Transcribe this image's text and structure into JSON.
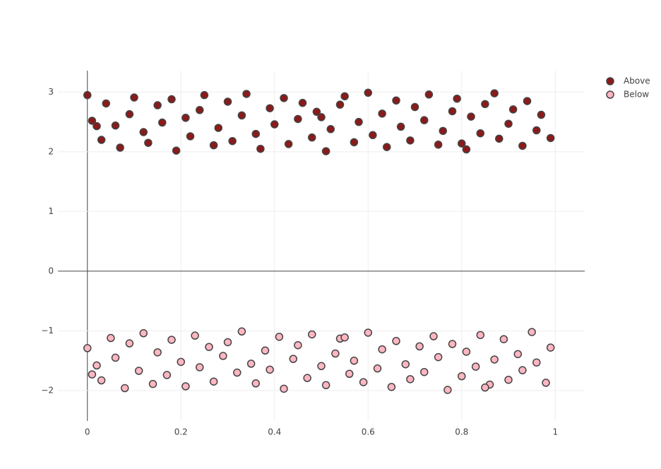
{
  "chart_data": {
    "type": "scatter",
    "xlim": [
      -0.063,
      1.063
    ],
    "ylim": [
      -2.51,
      3.36
    ],
    "xticks": [
      0,
      0.2,
      0.4,
      0.6,
      0.8,
      1
    ],
    "yticks": [
      {
        "value": -2,
        "label": "−2"
      },
      {
        "value": -1,
        "label": "−1"
      },
      0,
      1,
      2,
      3
    ],
    "grid": true,
    "legend": "top-right",
    "series": [
      {
        "name": "Above",
        "color": "#8b1a1a",
        "x": [
          0.0,
          0.01,
          0.03,
          0.04,
          0.06,
          0.07,
          0.09,
          0.1,
          0.12,
          0.13,
          0.15,
          0.16,
          0.18,
          0.19,
          0.21,
          0.22,
          0.24,
          0.25,
          0.27,
          0.28,
          0.3,
          0.31,
          0.33,
          0.34,
          0.36,
          0.37,
          0.39,
          0.4,
          0.42,
          0.43,
          0.45,
          0.46,
          0.48,
          0.49,
          0.51,
          0.52,
          0.54,
          0.55,
          0.57,
          0.58,
          0.6,
          0.61,
          0.63,
          0.64,
          0.66,
          0.67,
          0.69,
          0.7,
          0.72,
          0.73,
          0.75,
          0.76,
          0.78,
          0.79,
          0.81,
          0.82,
          0.84,
          0.85,
          0.87,
          0.88,
          0.9,
          0.91,
          0.93,
          0.94,
          0.96,
          0.97,
          0.99,
          0.02,
          0.5,
          0.8
        ],
        "values": [
          2.95,
          2.52,
          2.2,
          2.81,
          2.44,
          2.07,
          2.63,
          2.91,
          2.33,
          2.15,
          2.78,
          2.49,
          2.88,
          2.02,
          2.57,
          2.26,
          2.7,
          2.95,
          2.11,
          2.4,
          2.84,
          2.18,
          2.61,
          2.97,
          2.3,
          2.05,
          2.73,
          2.46,
          2.9,
          2.13,
          2.55,
          2.82,
          2.24,
          2.67,
          2.01,
          2.38,
          2.79,
          2.93,
          2.16,
          2.5,
          2.99,
          2.28,
          2.64,
          2.08,
          2.86,
          2.42,
          2.19,
          2.75,
          2.53,
          2.96,
          2.12,
          2.35,
          2.68,
          2.89,
          2.04,
          2.59,
          2.31,
          2.8,
          2.98,
          2.22,
          2.47,
          2.71,
          2.1,
          2.85,
          2.36,
          2.62,
          2.23,
          2.43,
          2.58,
          2.14
        ]
      },
      {
        "name": "Below",
        "color": "#ffb6c1",
        "x": [
          0.0,
          0.02,
          0.03,
          0.05,
          0.06,
          0.08,
          0.09,
          0.11,
          0.12,
          0.14,
          0.15,
          0.17,
          0.18,
          0.2,
          0.21,
          0.23,
          0.24,
          0.26,
          0.27,
          0.29,
          0.3,
          0.32,
          0.33,
          0.35,
          0.36,
          0.38,
          0.39,
          0.41,
          0.42,
          0.44,
          0.45,
          0.47,
          0.48,
          0.5,
          0.51,
          0.53,
          0.54,
          0.56,
          0.57,
          0.59,
          0.6,
          0.62,
          0.63,
          0.65,
          0.66,
          0.68,
          0.69,
          0.71,
          0.72,
          0.74,
          0.75,
          0.77,
          0.78,
          0.8,
          0.81,
          0.83,
          0.84,
          0.86,
          0.87,
          0.89,
          0.9,
          0.92,
          0.93,
          0.95,
          0.96,
          0.98,
          0.99,
          0.01,
          0.55,
          0.85
        ],
        "values": [
          -1.29,
          -1.58,
          -1.83,
          -1.12,
          -1.45,
          -1.96,
          -1.21,
          -1.67,
          -1.04,
          -1.89,
          -1.36,
          -1.74,
          -1.15,
          -1.52,
          -1.93,
          -1.08,
          -1.61,
          -1.27,
          -1.85,
          -1.42,
          -1.19,
          -1.7,
          -1.01,
          -1.55,
          -1.88,
          -1.33,
          -1.65,
          -1.1,
          -1.97,
          -1.47,
          -1.24,
          -1.79,
          -1.06,
          -1.59,
          -1.91,
          -1.38,
          -1.13,
          -1.72,
          -1.5,
          -1.86,
          -1.03,
          -1.63,
          -1.31,
          -1.94,
          -1.17,
          -1.56,
          -1.81,
          -1.26,
          -1.69,
          -1.09,
          -1.44,
          -1.99,
          -1.22,
          -1.76,
          -1.35,
          -1.6,
          -1.07,
          -1.9,
          -1.48,
          -1.14,
          -1.82,
          -1.39,
          -1.66,
          -1.02,
          -1.53,
          -1.87,
          -1.28,
          -1.73,
          -1.11,
          -1.95
        ]
      }
    ]
  }
}
